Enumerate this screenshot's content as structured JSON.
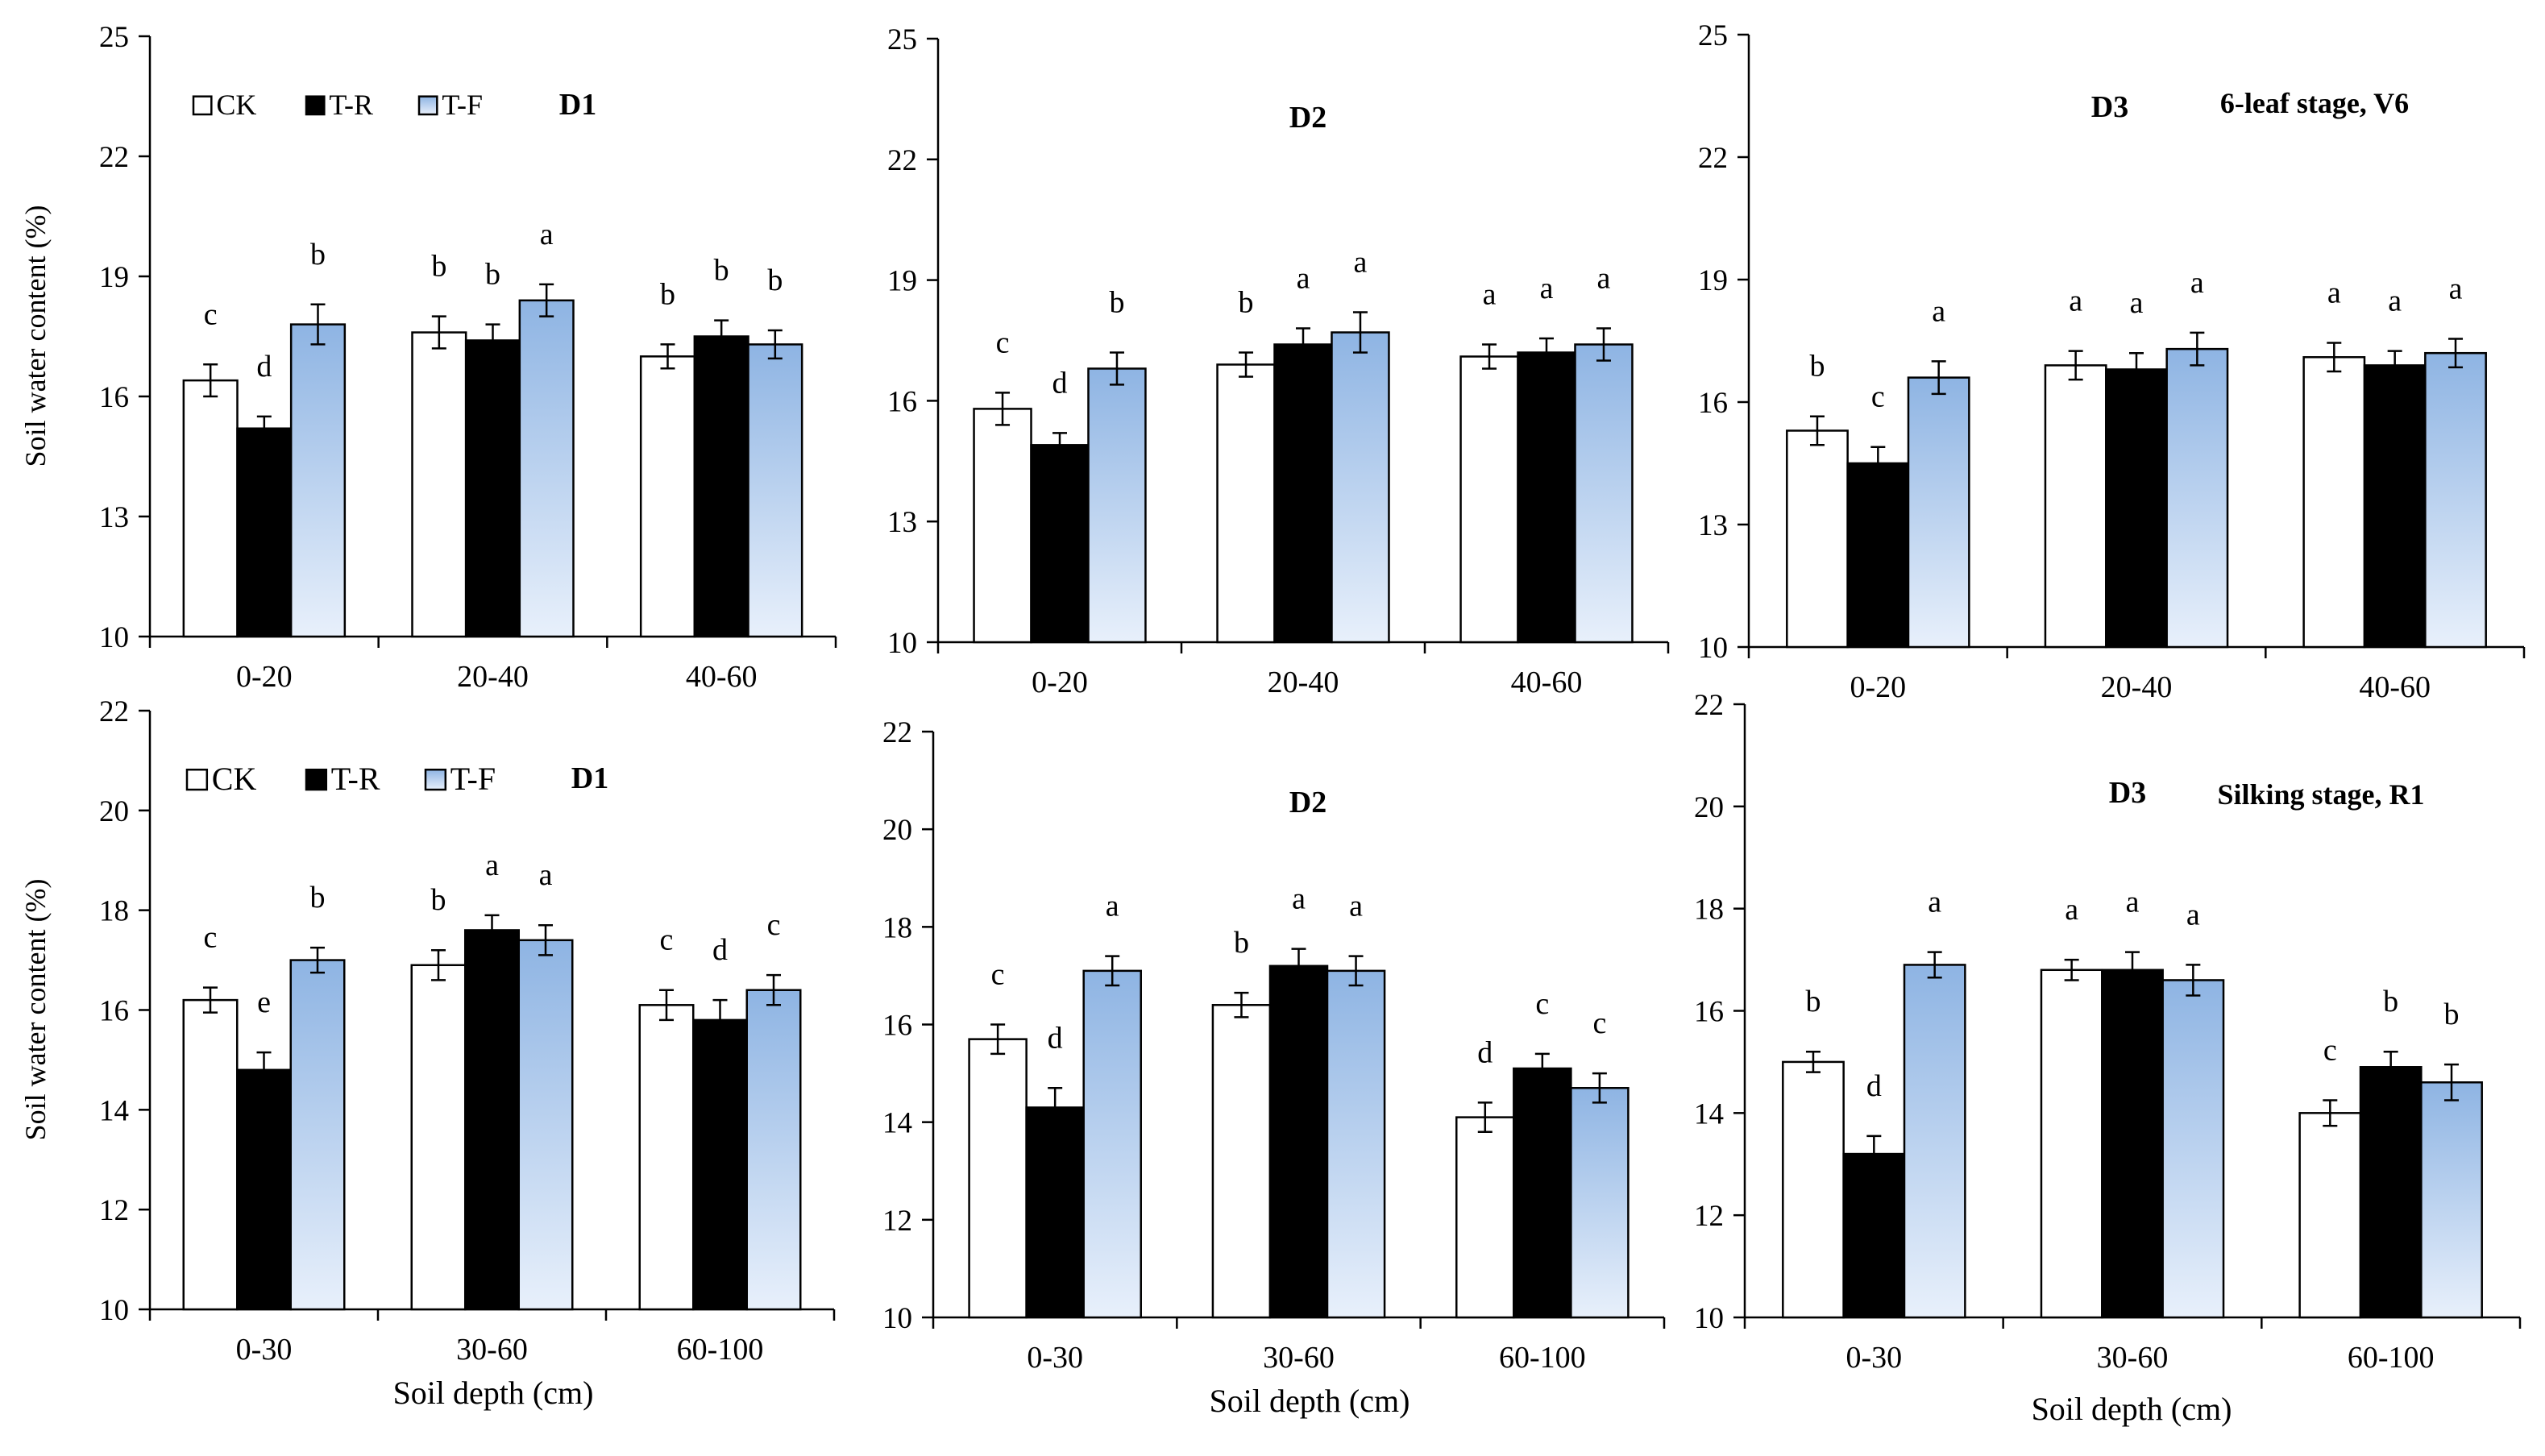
{
  "figure": {
    "xlabel": "Soil depth (cm)",
    "ylabel": "Soil water content (%)",
    "colors": {
      "CK": "#ffffff",
      "T-R": "#000000",
      "T-F_top": "#8eb4e3",
      "T-F_bottom": "#e8f0fb",
      "axis": "#000000"
    }
  },
  "chart_data": [
    {
      "type": "bar",
      "panel": "top-D1",
      "title": "D1",
      "subtitle": "",
      "legend": [
        "CK",
        "T-R",
        "T-F"
      ],
      "legend_position": "top-left",
      "categories": [
        "0-20",
        "20-40",
        "40-60"
      ],
      "ylim": [
        10,
        25
      ],
      "yticks": [
        10,
        13,
        16,
        19,
        22,
        25
      ],
      "ylabel": "Soil water content (%)",
      "xlabel": "",
      "series": [
        {
          "name": "CK",
          "values": [
            16.4,
            17.6,
            17.0
          ],
          "errors": [
            0.4,
            0.4,
            0.3
          ],
          "letters": [
            "c",
            "b",
            "b"
          ]
        },
        {
          "name": "T-R",
          "values": [
            15.2,
            17.4,
            17.5
          ],
          "errors": [
            0.3,
            0.4,
            0.4
          ],
          "letters": [
            "d",
            "b",
            "b"
          ]
        },
        {
          "name": "T-F",
          "values": [
            17.8,
            18.4,
            17.3
          ],
          "errors": [
            0.5,
            0.4,
            0.35
          ],
          "letters": [
            "b",
            "a",
            "b"
          ]
        }
      ]
    },
    {
      "type": "bar",
      "panel": "top-D2",
      "title": "D2",
      "subtitle": "",
      "legend": [],
      "categories": [
        "0-20",
        "20-40",
        "40-60"
      ],
      "ylim": [
        10,
        25
      ],
      "yticks": [
        10,
        13,
        16,
        19,
        22,
        25
      ],
      "ylabel": "",
      "xlabel": "",
      "series": [
        {
          "name": "CK",
          "values": [
            15.8,
            16.9,
            17.1
          ],
          "errors": [
            0.4,
            0.3,
            0.3
          ],
          "letters": [
            "c",
            "b",
            "a"
          ]
        },
        {
          "name": "T-R",
          "values": [
            14.9,
            17.4,
            17.2
          ],
          "errors": [
            0.3,
            0.4,
            0.35
          ],
          "letters": [
            "d",
            "a",
            "a"
          ]
        },
        {
          "name": "T-F",
          "values": [
            16.8,
            17.7,
            17.4
          ],
          "errors": [
            0.4,
            0.5,
            0.4
          ],
          "letters": [
            "b",
            "a",
            "a"
          ]
        }
      ]
    },
    {
      "type": "bar",
      "panel": "top-D3",
      "title": "D3",
      "subtitle": "6-leaf stage, V6",
      "legend": [],
      "categories": [
        "0-20",
        "20-40",
        "40-60"
      ],
      "ylim": [
        10,
        25
      ],
      "yticks": [
        10,
        13,
        16,
        19,
        22,
        25
      ],
      "ylabel": "",
      "xlabel": "",
      "series": [
        {
          "name": "CK",
          "values": [
            15.3,
            16.9,
            17.1
          ],
          "errors": [
            0.35,
            0.35,
            0.35
          ],
          "letters": [
            "b",
            "a",
            "a"
          ]
        },
        {
          "name": "T-R",
          "values": [
            14.5,
            16.8,
            16.9
          ],
          "errors": [
            0.4,
            0.4,
            0.35
          ],
          "letters": [
            "c",
            "a",
            "a"
          ]
        },
        {
          "name": "T-F",
          "values": [
            16.6,
            17.3,
            17.2
          ],
          "errors": [
            0.4,
            0.4,
            0.35
          ],
          "letters": [
            "a",
            "a",
            "a"
          ]
        }
      ]
    },
    {
      "type": "bar",
      "panel": "bottom-D1",
      "title": "D1",
      "subtitle": "",
      "legend": [
        "CK",
        "T-R",
        "T-F"
      ],
      "legend_position": "top-left",
      "categories": [
        "0-30",
        "30-60",
        "60-100"
      ],
      "ylim": [
        10,
        22
      ],
      "yticks": [
        10,
        12,
        14,
        16,
        18,
        20,
        22
      ],
      "ylabel": "Soil water content (%)",
      "xlabel": "Soil depth (cm)",
      "series": [
        {
          "name": "CK",
          "values": [
            16.2,
            16.9,
            16.1
          ],
          "errors": [
            0.25,
            0.3,
            0.3
          ],
          "letters": [
            "c",
            "b",
            "c"
          ]
        },
        {
          "name": "T-R",
          "values": [
            14.8,
            17.6,
            15.8
          ],
          "errors": [
            0.35,
            0.3,
            0.4
          ],
          "letters": [
            "e",
            "a",
            "d"
          ]
        },
        {
          "name": "T-F",
          "values": [
            17.0,
            17.4,
            16.4
          ],
          "errors": [
            0.25,
            0.3,
            0.3
          ],
          "letters": [
            "b",
            "a",
            "c"
          ]
        }
      ]
    },
    {
      "type": "bar",
      "panel": "bottom-D2",
      "title": "D2",
      "subtitle": "",
      "legend": [],
      "categories": [
        "0-30",
        "30-60",
        "60-100"
      ],
      "ylim": [
        10,
        22
      ],
      "yticks": [
        10,
        12,
        14,
        16,
        18,
        20,
        22
      ],
      "ylabel": "",
      "xlabel": "Soil depth (cm)",
      "series": [
        {
          "name": "CK",
          "values": [
            15.7,
            16.4,
            14.1
          ],
          "errors": [
            0.3,
            0.25,
            0.3
          ],
          "letters": [
            "c",
            "b",
            "d"
          ]
        },
        {
          "name": "T-R",
          "values": [
            14.3,
            17.2,
            15.1
          ],
          "errors": [
            0.4,
            0.35,
            0.3
          ],
          "letters": [
            "d",
            "a",
            "c"
          ]
        },
        {
          "name": "T-F",
          "values": [
            17.1,
            17.1,
            14.7
          ],
          "errors": [
            0.3,
            0.3,
            0.3
          ],
          "letters": [
            "a",
            "a",
            "c"
          ]
        }
      ]
    },
    {
      "type": "bar",
      "panel": "bottom-D3",
      "title": "D3",
      "subtitle": "Silking stage, R1",
      "legend": [],
      "categories": [
        "0-30",
        "30-60",
        "60-100"
      ],
      "ylim": [
        10,
        22
      ],
      "yticks": [
        10,
        12,
        14,
        16,
        18,
        20,
        22
      ],
      "ylabel": "",
      "xlabel": "Soil depth (cm)",
      "series": [
        {
          "name": "CK",
          "values": [
            15.0,
            16.8,
            14.0
          ],
          "errors": [
            0.2,
            0.2,
            0.25
          ],
          "letters": [
            "b",
            "a",
            "c"
          ]
        },
        {
          "name": "T-R",
          "values": [
            13.2,
            16.8,
            14.9
          ],
          "errors": [
            0.35,
            0.35,
            0.3
          ],
          "letters": [
            "d",
            "a",
            "b"
          ]
        },
        {
          "name": "T-F",
          "values": [
            16.9,
            16.6,
            14.6
          ],
          "errors": [
            0.25,
            0.3,
            0.35
          ],
          "letters": [
            "a",
            "a",
            "b"
          ]
        }
      ]
    }
  ]
}
